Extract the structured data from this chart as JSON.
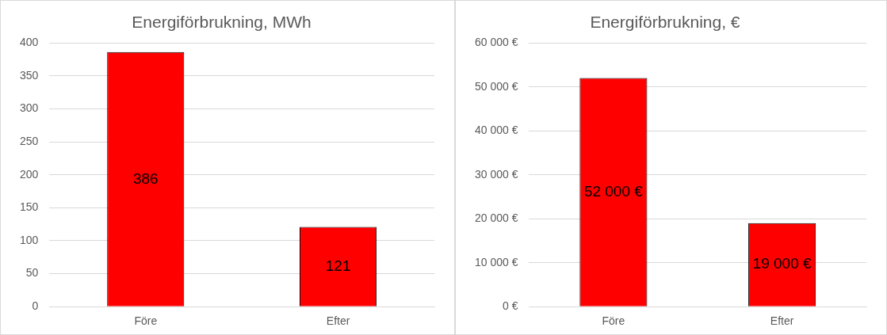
{
  "chart_data": [
    {
      "type": "bar",
      "title": "Energiförbrukning, MWh",
      "categories": [
        "Före",
        "Efter"
      ],
      "values": [
        386,
        121
      ],
      "color": "#ff0000",
      "ylim": [
        0,
        400
      ],
      "yticks": [
        0,
        50,
        100,
        150,
        200,
        250,
        300,
        350,
        400
      ],
      "grid": "y",
      "legend": false,
      "data_labels": true
    },
    {
      "type": "bar",
      "title": "Energiförbrukning, €",
      "categories": [
        "Före",
        "Efter"
      ],
      "values": [
        52000,
        19000
      ],
      "color": "#ff0000",
      "ylim": [
        0,
        60000
      ],
      "yticks": [
        {
          "value": 0,
          "label": "0 €"
        },
        {
          "value": 10000,
          "label": "10 000 €"
        },
        {
          "value": 20000,
          "label": "20 000 €"
        },
        {
          "value": 30000,
          "label": "30 000 €"
        },
        {
          "value": 40000,
          "label": "40 000 €"
        },
        {
          "value": 50000,
          "label": "50 000 €"
        },
        {
          "value": 60000,
          "label": "60 000 €"
        }
      ],
      "grid": "y",
      "legend": false,
      "value_labels": [
        "52 000 €",
        "19 000 €"
      ]
    }
  ]
}
